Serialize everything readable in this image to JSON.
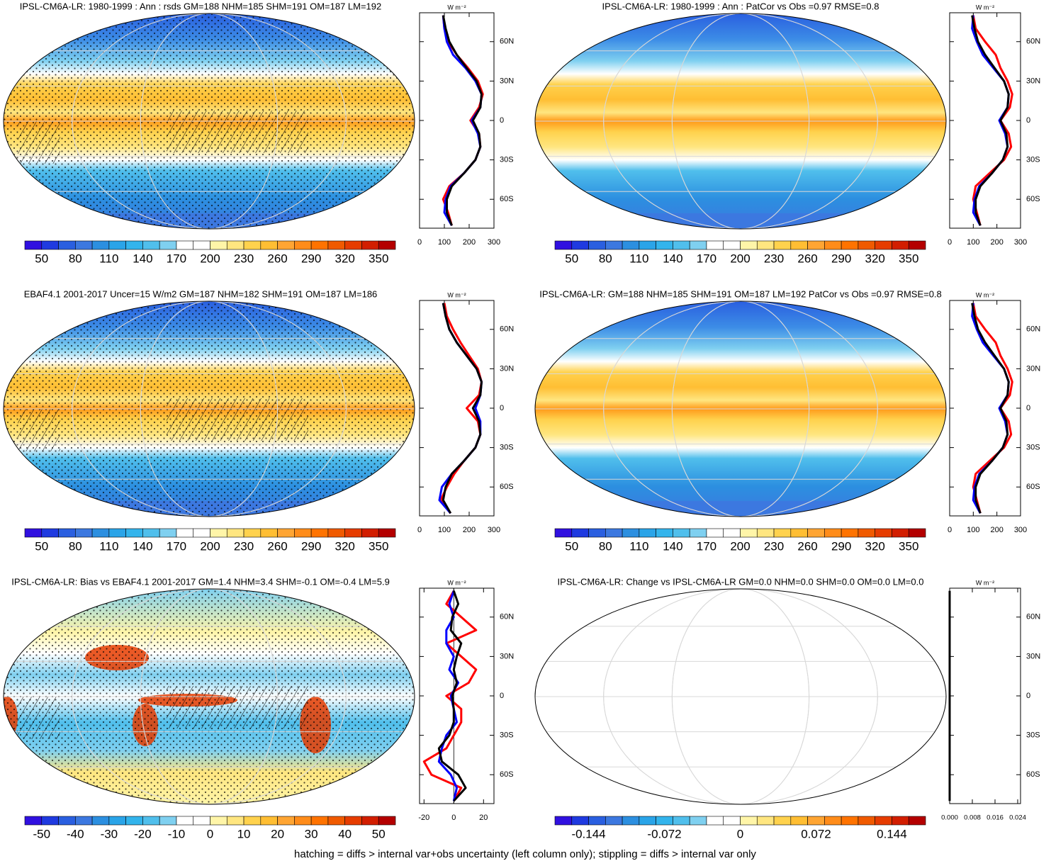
{
  "chart_data": [
    {
      "type": "map",
      "title": "IPSL-CM6A-LR: 1980-1999 : Ann : rsds GM=188 NHM=185 SHM=191 OM=187 LM=192",
      "colorbar": {
        "clim": [
          35,
          365
        ],
        "ticks": [
          50,
          80,
          110,
          140,
          170,
          200,
          230,
          260,
          290,
          320,
          350
        ],
        "colors": [
          "#3010e0",
          "#1f3ae0",
          "#2a5fe0",
          "#3c78e0",
          "#2c8fe0",
          "#2aa4e8",
          "#33b4ec",
          "#50bfec",
          "#7fd0f0",
          "#ffffff",
          "#ffffff",
          "#fff5a8",
          "#ffe680",
          "#ffd24d",
          "#ffbe33",
          "#ffa533",
          "#ff8c1a",
          "#ff7300",
          "#f05a00",
          "#e63c00",
          "#d21e00",
          "#b40000"
        ]
      },
      "profile": {
        "type": "line",
        "unit": "W m⁻²",
        "xlim": [
          0,
          300
        ],
        "xticks": [
          0,
          100,
          200,
          300
        ],
        "ylim": [
          -82,
          82
        ],
        "yticks": [
          {
            "value": 60,
            "label": "60N"
          },
          {
            "value": 30,
            "label": "30N"
          },
          0,
          {
            "value": -30,
            "label": "30S"
          },
          {
            "value": -60,
            "label": "60S"
          }
        ],
        "lat": [
          80,
          70,
          60,
          50,
          40,
          30,
          20,
          10,
          0,
          -10,
          -20,
          -30,
          -40,
          -50,
          -60,
          -70,
          -80
        ],
        "series": [
          {
            "color": "#ff0000",
            "values": [
              95,
              100,
              115,
              150,
              195,
              235,
              255,
              240,
              205,
              240,
              245,
              225,
              180,
              120,
              95,
              115,
              130
            ]
          },
          {
            "color": "#0000ff",
            "values": [
              95,
              100,
              110,
              135,
              185,
              225,
              250,
              245,
              210,
              235,
              245,
              225,
              180,
              125,
              105,
              100,
              130
            ]
          },
          {
            "color": "#000000",
            "values": [
              95,
              105,
              120,
              150,
              190,
              230,
              250,
              245,
              215,
              240,
              245,
              225,
              180,
              130,
              110,
              110,
              130
            ]
          }
        ]
      }
    },
    {
      "type": "map",
      "title": "IPSL-CM6A-LR: 1980-1999 : Ann : PatCor vs Obs =0.97 RMSE=0.8",
      "colorbar": {
        "clim": [
          35,
          365
        ],
        "ticks": [
          50,
          80,
          110,
          140,
          170,
          200,
          230,
          260,
          290,
          320,
          350
        ],
        "colors": [
          "#3010e0",
          "#1f3ae0",
          "#2a5fe0",
          "#3c78e0",
          "#2c8fe0",
          "#2aa4e8",
          "#33b4ec",
          "#50bfec",
          "#7fd0f0",
          "#ffffff",
          "#ffffff",
          "#fff5a8",
          "#ffe680",
          "#ffd24d",
          "#ffbe33",
          "#ffa533",
          "#ff8c1a",
          "#ff7300",
          "#f05a00",
          "#e63c00",
          "#d21e00",
          "#b40000"
        ]
      },
      "profile": {
        "type": "line",
        "unit": "W m⁻²",
        "xlim": [
          0,
          300
        ],
        "xticks": [
          0,
          100,
          200,
          300
        ],
        "ylim": [
          -82,
          82
        ],
        "yticks": [
          {
            "value": 60,
            "label": "60N"
          },
          {
            "value": 30,
            "label": "30N"
          },
          0,
          {
            "value": -30,
            "label": "30S"
          },
          {
            "value": -60,
            "label": "60S"
          }
        ],
        "lat": [
          80,
          70,
          60,
          50,
          40,
          30,
          20,
          10,
          0,
          -10,
          -20,
          -30,
          -40,
          -50,
          -60,
          -70,
          -80
        ],
        "series": [
          {
            "color": "#ff0000",
            "values": [
              100,
              110,
              150,
              195,
              215,
              245,
              265,
              255,
              215,
              250,
              260,
              230,
              170,
              110,
              100,
              115,
              130
            ]
          },
          {
            "color": "#0000ff",
            "values": [
              100,
              95,
              115,
              140,
              185,
              230,
              250,
              245,
              210,
              235,
              245,
              225,
              180,
              125,
              105,
              100,
              130
            ]
          },
          {
            "color": "#000000",
            "values": [
              95,
              105,
              120,
              150,
              190,
              230,
              250,
              245,
              215,
              240,
              245,
              225,
              180,
              130,
              110,
              110,
              130
            ]
          }
        ]
      }
    },
    {
      "type": "map",
      "title": "EBAF4.1 2001-2017 Uncer=15 W/m2 GM=187 NHM=182 SHM=191 OM=187 LM=186",
      "colorbar": {
        "clim": [
          35,
          365
        ],
        "ticks": [
          50,
          80,
          110,
          140,
          170,
          200,
          230,
          260,
          290,
          320,
          350
        ],
        "colors": [
          "#3010e0",
          "#1f3ae0",
          "#2a5fe0",
          "#3c78e0",
          "#2c8fe0",
          "#2aa4e8",
          "#33b4ec",
          "#50bfec",
          "#7fd0f0",
          "#ffffff",
          "#ffffff",
          "#fff5a8",
          "#ffe680",
          "#ffd24d",
          "#ffbe33",
          "#ffa533",
          "#ff8c1a",
          "#ff7300",
          "#f05a00",
          "#e63c00",
          "#d21e00",
          "#b40000"
        ]
      },
      "profile": {
        "type": "line",
        "unit": "W m⁻²",
        "xlim": [
          0,
          300
        ],
        "xticks": [
          0,
          100,
          200,
          300
        ],
        "ylim": [
          -82,
          82
        ],
        "yticks": [
          {
            "value": 60,
            "label": "60N"
          },
          {
            "value": 30,
            "label": "30N"
          },
          0,
          {
            "value": -30,
            "label": "30S"
          },
          {
            "value": -60,
            "label": "60S"
          }
        ],
        "lat": [
          80,
          70,
          60,
          50,
          40,
          30,
          20,
          10,
          0,
          -10,
          -20,
          -30,
          -40,
          -50,
          -60,
          -70,
          -80
        ],
        "series": [
          {
            "color": "#ff0000",
            "values": [
              100,
              110,
              135,
              165,
              200,
              235,
              250,
              240,
              190,
              235,
              245,
              225,
              180,
              140,
              110,
              85,
              125
            ]
          },
          {
            "color": "#0000ff",
            "values": [
              95,
              105,
              120,
              150,
              190,
              230,
              250,
              245,
              225,
              245,
              245,
              225,
              180,
              130,
              90,
              80,
              125
            ]
          },
          {
            "color": "#000000",
            "values": [
              95,
              105,
              120,
              150,
              190,
              230,
              250,
              245,
              215,
              240,
              245,
              225,
              180,
              130,
              105,
              95,
              125
            ]
          }
        ]
      }
    },
    {
      "type": "map",
      "title": "IPSL-CM6A-LR: GM=188 NHM=185 SHM=191 OM=187 LM=192 PatCor vs Obs =0.97 RMSE=0.8",
      "colorbar": {
        "clim": [
          35,
          365
        ],
        "ticks": [
          50,
          80,
          110,
          140,
          170,
          200,
          230,
          260,
          290,
          320,
          350
        ],
        "colors": [
          "#3010e0",
          "#1f3ae0",
          "#2a5fe0",
          "#3c78e0",
          "#2c8fe0",
          "#2aa4e8",
          "#33b4ec",
          "#50bfec",
          "#7fd0f0",
          "#ffffff",
          "#ffffff",
          "#fff5a8",
          "#ffe680",
          "#ffd24d",
          "#ffbe33",
          "#ffa533",
          "#ff8c1a",
          "#ff7300",
          "#f05a00",
          "#e63c00",
          "#d21e00",
          "#b40000"
        ]
      },
      "profile": {
        "type": "line",
        "unit": "W m⁻²",
        "xlim": [
          0,
          300
        ],
        "xticks": [
          0,
          100,
          200,
          300
        ],
        "ylim": [
          -82,
          82
        ],
        "yticks": [
          {
            "value": 60,
            "label": "60N"
          },
          {
            "value": 30,
            "label": "30N"
          },
          0,
          {
            "value": -30,
            "label": "30S"
          },
          {
            "value": -60,
            "label": "60S"
          }
        ],
        "lat": [
          80,
          70,
          60,
          50,
          40,
          30,
          20,
          10,
          0,
          -10,
          -20,
          -30,
          -40,
          -50,
          -60,
          -70,
          -80
        ],
        "series": [
          {
            "color": "#ff0000",
            "values": [
              100,
              110,
              150,
              195,
              215,
              245,
              265,
              255,
              215,
              250,
              260,
              230,
              170,
              110,
              100,
              115,
              130
            ]
          },
          {
            "color": "#0000ff",
            "values": [
              100,
              95,
              115,
              140,
              185,
              230,
              250,
              245,
              210,
              235,
              245,
              225,
              180,
              125,
              105,
              100,
              130
            ]
          },
          {
            "color": "#000000",
            "values": [
              95,
              105,
              120,
              150,
              190,
              230,
              250,
              245,
              215,
              240,
              245,
              225,
              180,
              130,
              110,
              110,
              130
            ]
          }
        ]
      }
    },
    {
      "type": "map",
      "title": "IPSL-CM6A-LR: Bias vs EBAF4.1 2001-2017 GM=1.4 NHM=3.4 SHM=-0.1 OM=-0.4 LM=5.9",
      "colorbar": {
        "clim": [
          -55,
          55
        ],
        "ticks": [
          -50,
          -40,
          -30,
          -20,
          -10,
          0,
          10,
          20,
          30,
          40,
          50
        ],
        "colors": [
          "#3010e0",
          "#1f3ae0",
          "#2a5fe0",
          "#3c78e0",
          "#2c8fe0",
          "#2aa4e8",
          "#33b4ec",
          "#50bfec",
          "#7fd0f0",
          "#ffffff",
          "#ffffff",
          "#fff5a8",
          "#ffe680",
          "#ffd24d",
          "#ffbe33",
          "#ffa533",
          "#ff8c1a",
          "#ff7300",
          "#f05a00",
          "#e63c00",
          "#d21e00",
          "#b40000"
        ]
      },
      "profile": {
        "type": "line",
        "unit": "W m⁻²",
        "xlim": [
          -23,
          27
        ],
        "xticks": [
          -20,
          0,
          20
        ],
        "ylim": [
          -82,
          82
        ],
        "yticks": [
          {
            "value": 60,
            "label": "60N"
          },
          {
            "value": 30,
            "label": "30N"
          },
          0,
          {
            "value": -30,
            "label": "30S"
          },
          {
            "value": -60,
            "label": "60S"
          }
        ],
        "lat": [
          80,
          70,
          60,
          50,
          40,
          30,
          20,
          10,
          0,
          -10,
          -20,
          -30,
          -40,
          -50,
          -60,
          -70,
          -80
        ],
        "series": [
          {
            "color": "#ff0000",
            "values": [
              0,
              -5,
              5,
              15,
              -5,
              5,
              15,
              10,
              -5,
              5,
              5,
              0,
              -5,
              -20,
              -15,
              5,
              0
            ]
          },
          {
            "color": "#0000ff",
            "values": [
              0,
              -3,
              0,
              -5,
              -5,
              0,
              -3,
              3,
              -2,
              0,
              2,
              -5,
              -8,
              -10,
              -2,
              2,
              0
            ]
          },
          {
            "color": "#000000",
            "values": [
              0,
              3,
              -1,
              -2,
              5,
              2,
              0,
              2,
              -1,
              0,
              0,
              -3,
              -10,
              -8,
              3,
              8,
              0
            ]
          }
        ]
      }
    },
    {
      "type": "map",
      "title": "IPSL-CM6A-LR: Change vs IPSL-CM6A-LR GM=0.0 NHM=0.0 SHM=0.0 OM=0.0 LM=0.0",
      "colorbar": {
        "clim": [
          -0.176,
          0.176
        ],
        "ticks": [
          -0.144,
          -0.072,
          0,
          0.072,
          0.144
        ],
        "colors": [
          "#3010e0",
          "#1f3ae0",
          "#2a5fe0",
          "#3c78e0",
          "#2c8fe0",
          "#2aa4e8",
          "#33b4ec",
          "#50bfec",
          "#7fd0f0",
          "#ffffff",
          "#ffffff",
          "#fff5a8",
          "#ffe680",
          "#ffd24d",
          "#ffbe33",
          "#ffa533",
          "#ff8c1a",
          "#ff7300",
          "#f05a00",
          "#e63c00",
          "#d21e00",
          "#b40000"
        ]
      },
      "profile": {
        "type": "line",
        "unit": "W m⁻²",
        "xlim": [
          0,
          0.025
        ],
        "xticks": [
          {
            "value": 0,
            "label": "0.000"
          },
          0.008,
          0.016,
          0.024
        ],
        "ylim": [
          -82,
          82
        ],
        "yticks": [
          {
            "value": 60,
            "label": "60N"
          },
          {
            "value": 30,
            "label": "30N"
          },
          0,
          {
            "value": -30,
            "label": "30S"
          },
          {
            "value": -60,
            "label": "60S"
          }
        ],
        "lat": [
          80,
          70,
          60,
          50,
          40,
          30,
          20,
          10,
          0,
          -10,
          -20,
          -30,
          -40,
          -50,
          -60,
          -70,
          -80
        ],
        "series": [
          {
            "color": "#000000",
            "values": [
              0,
              0,
              0,
              0,
              0,
              0,
              0,
              0,
              0,
              0,
              0,
              0,
              0,
              0,
              0,
              0,
              0
            ]
          }
        ]
      }
    }
  ],
  "footnote": "hatching = diffs > internal var+obs uncertainty (left column only); stippling = diffs > internal var only"
}
